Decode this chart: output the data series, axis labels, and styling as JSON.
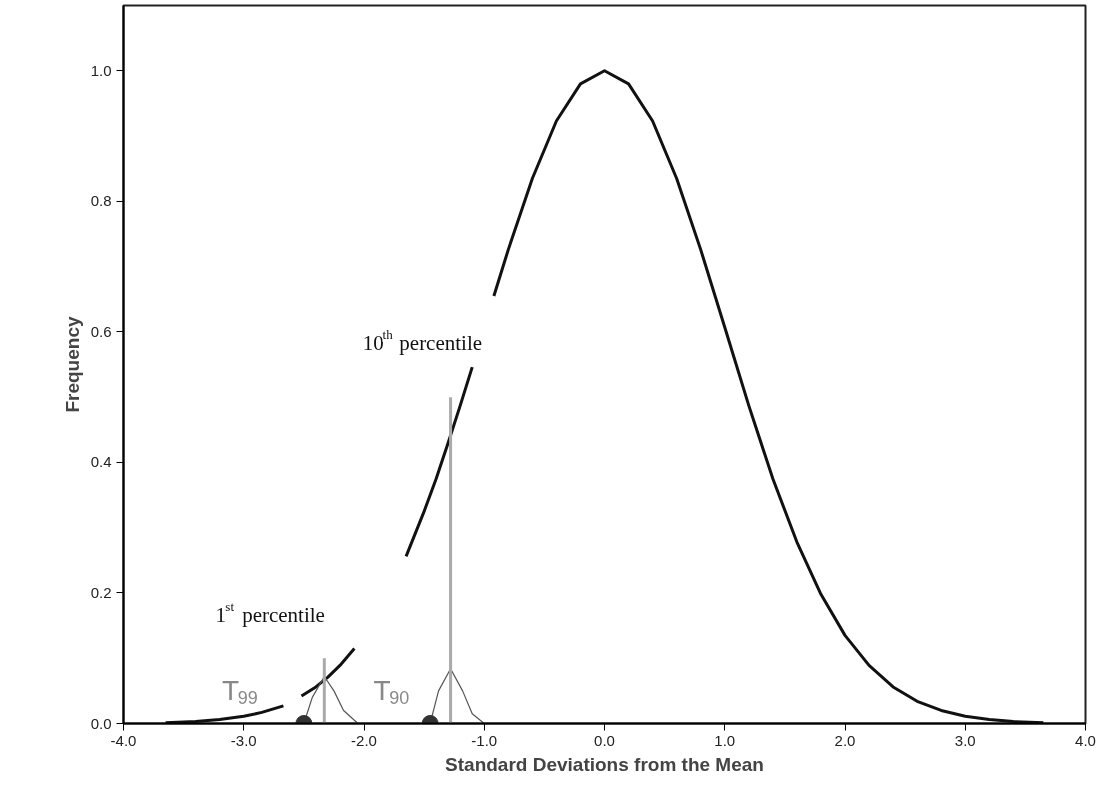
{
  "chart_data": {
    "type": "line",
    "xlabel": "Standard Deviations from the Mean",
    "ylabel": "Frequency",
    "x": [
      -3.65,
      -3.4,
      -3.2,
      -3.0,
      -2.85,
      -2.67,
      -2.6,
      -2.52,
      -2.4,
      -2.3,
      -2.2,
      -2.08,
      -1.9,
      -1.65,
      -1.5,
      -1.4,
      -1.3,
      -1.2,
      -1.1,
      -1.04,
      -1.0,
      -0.92,
      -0.8,
      -0.6,
      -0.4,
      -0.2,
      0.0,
      0.2,
      0.4,
      0.6,
      0.8,
      1.0,
      1.2,
      1.4,
      1.6,
      1.8,
      2.0,
      2.2,
      2.4,
      2.6,
      2.8,
      3.0,
      3.2,
      3.4,
      3.65
    ],
    "series": [
      {
        "color": "#111111",
        "values": [
          0.001,
          0.003,
          0.006,
          0.011,
          0.017,
          0.027,
          null,
          0.042,
          0.056,
          0.071,
          0.089,
          0.115,
          null,
          0.256,
          0.325,
          0.375,
          0.43,
          0.487,
          0.546,
          null,
          null,
          0.655,
          0.726,
          0.835,
          0.923,
          0.98,
          1.0,
          0.98,
          0.923,
          0.835,
          0.726,
          0.607,
          0.487,
          0.375,
          0.278,
          0.198,
          0.135,
          0.089,
          0.056,
          0.034,
          0.02,
          0.011,
          0.006,
          0.003,
          0.001
        ]
      },
      {
        "type": "line",
        "color": "#555555",
        "x": [
          -2.5,
          -2.43,
          -2.33,
          -2.25,
          -2.17,
          -2.05
        ],
        "values": [
          0.0,
          0.04,
          0.072,
          0.05,
          0.02,
          0.0
        ]
      },
      {
        "type": "line",
        "color": "#555555",
        "x": [
          -1.45,
          -1.38,
          -1.28,
          -1.18,
          -1.1,
          -1.0
        ],
        "values": [
          0.0,
          0.05,
          0.084,
          0.05,
          0.015,
          0.0
        ]
      },
      {
        "type": "line",
        "color": "#aaaaaa",
        "x": [
          -2.33,
          -2.33
        ],
        "values": [
          0.0,
          0.1
        ]
      },
      {
        "type": "line",
        "color": "#aaaaaa",
        "x": [
          -1.28,
          -1.28
        ],
        "values": [
          0.0,
          0.5
        ]
      },
      {
        "type": "scatter",
        "color": "#333333",
        "marker": "circle",
        "x": [
          -2.5,
          -1.45
        ],
        "values": [
          0.0,
          0.0
        ]
      }
    ],
    "xlim": [
      -4.0,
      4.0
    ],
    "xticks": [
      {
        "value": -4,
        "label": "-4.0"
      },
      {
        "value": -3,
        "label": "-3.0"
      },
      {
        "value": -2,
        "label": "-2.0"
      },
      {
        "value": -1,
        "label": "-1.0"
      },
      {
        "value": 0,
        "label": "0.0"
      },
      {
        "value": 1,
        "label": "1.0"
      },
      {
        "value": 2,
        "label": "2.0"
      },
      {
        "value": 3,
        "label": "3.0"
      },
      {
        "value": 4,
        "label": "4.0"
      }
    ],
    "ylim": [
      0.0,
      1.1
    ],
    "yticks": [
      {
        "value": 0,
        "label": "0.0"
      },
      {
        "value": 0.2,
        "label": "0.2"
      },
      {
        "value": 0.4,
        "label": "0.4"
      },
      {
        "value": 0.6,
        "label": "0.6"
      },
      {
        "value": 0.8,
        "label": "0.8"
      },
      {
        "value": 1,
        "label": "1.0"
      }
    ],
    "grid": false,
    "annotations": [
      "1$^{st}$ percentile",
      "10$^{th}$ percentile",
      "T$_{99}$",
      "T$_{90}$"
    ]
  }
}
